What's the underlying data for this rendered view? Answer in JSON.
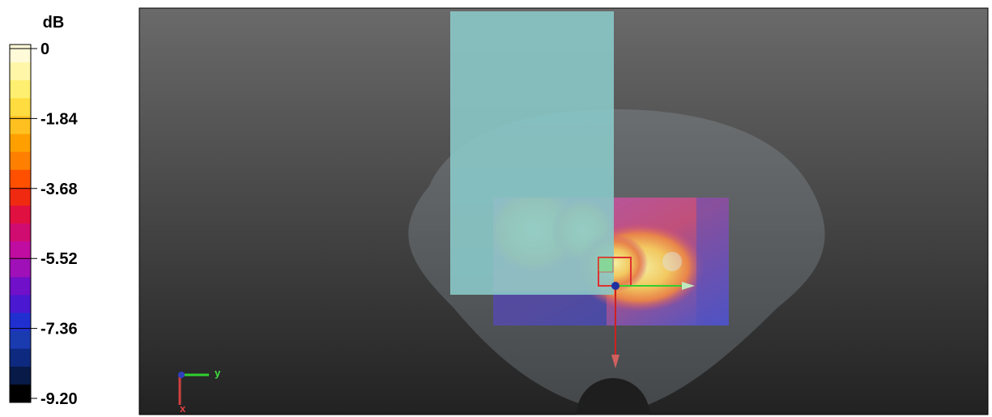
{
  "colorbar": {
    "title": "dB",
    "labels": [
      "0",
      "-1.84",
      "-3.68",
      "-5.52",
      "-7.36",
      "-9.20"
    ]
  },
  "axes": {
    "y": "y",
    "x": "x"
  }
}
